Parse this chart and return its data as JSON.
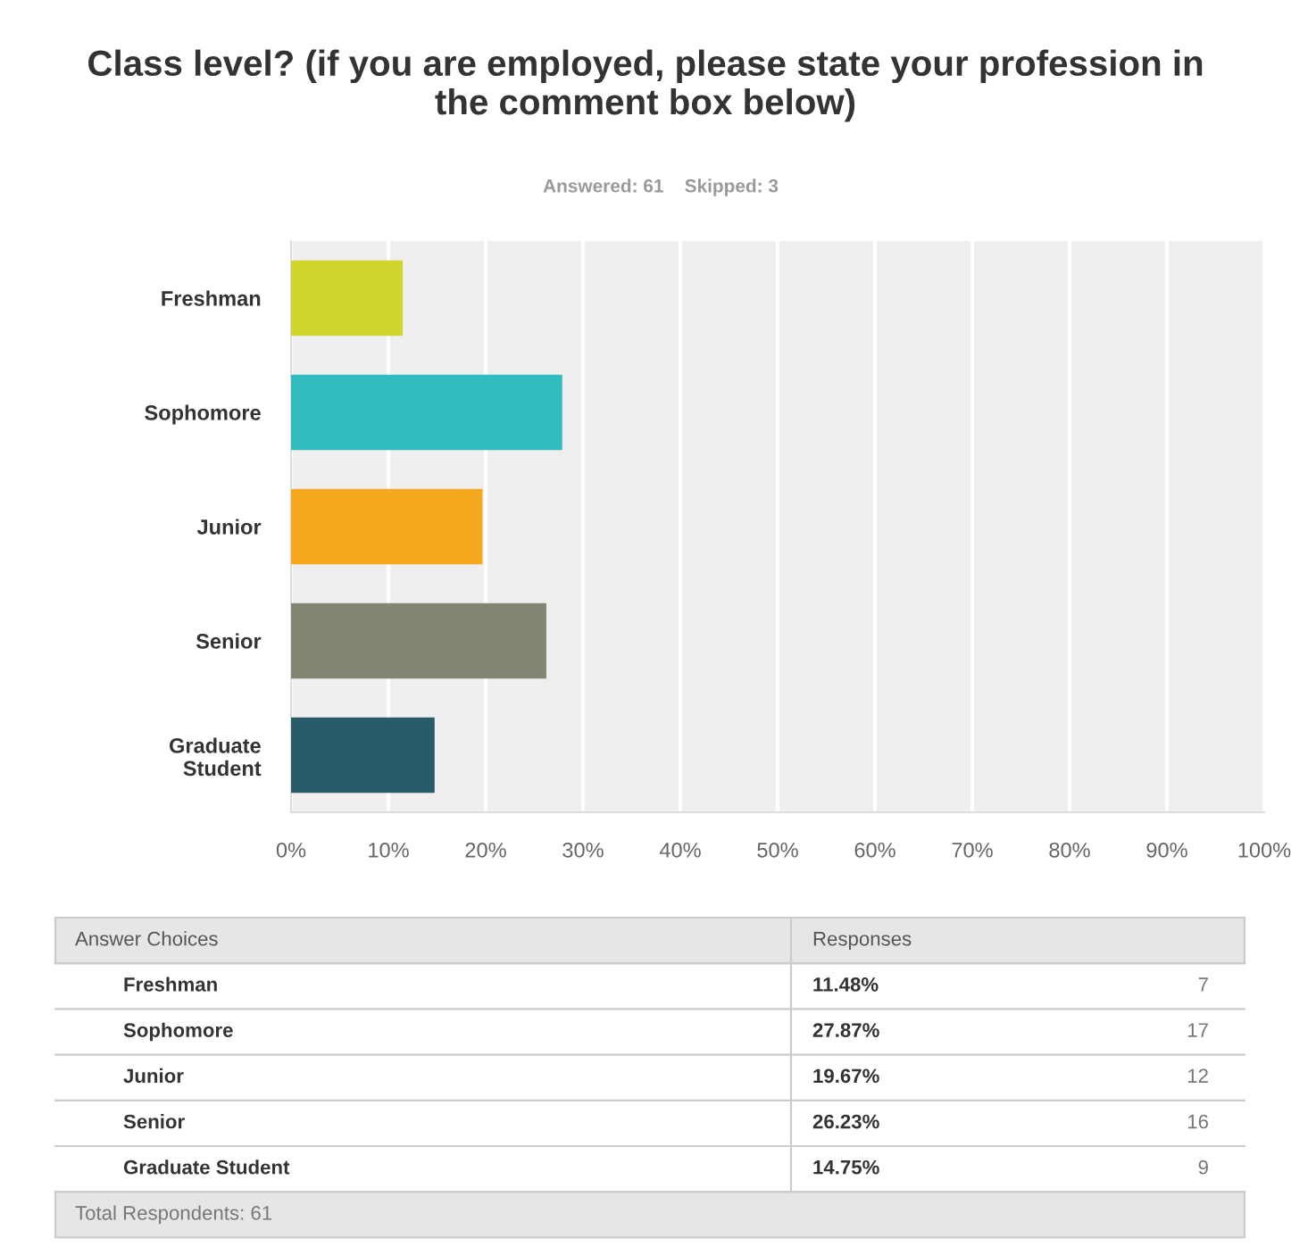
{
  "chart_data": {
    "type": "bar",
    "orientation": "horizontal",
    "title": "Class level? (if you are employed, please state your profession in the comment box below)",
    "subtitle": "Answered: 61    Skipped: 3",
    "categories": [
      "Freshman",
      "Sophomore",
      "Junior",
      "Senior",
      "Graduate Student"
    ],
    "values": [
      11.48,
      27.87,
      19.67,
      26.23,
      14.75
    ],
    "colors": [
      "#cfd52a",
      "#31bcbd",
      "#f5a81e",
      "#858574",
      "#2a5b68"
    ],
    "xlim": [
      0,
      100
    ],
    "xticks": [
      {
        "value": 0,
        "label": "0%"
      },
      {
        "value": 10,
        "label": "10%"
      },
      {
        "value": 20,
        "label": "20%"
      },
      {
        "value": 30,
        "label": "30%"
      },
      {
        "value": 40,
        "label": "40%"
      },
      {
        "value": 50,
        "label": "50%"
      },
      {
        "value": 60,
        "label": "60%"
      },
      {
        "value": 70,
        "label": "70%"
      },
      {
        "value": 80,
        "label": "80%"
      },
      {
        "value": 90,
        "label": "90%"
      },
      {
        "value": 100,
        "label": "100%"
      }
    ],
    "grid": "x",
    "annotations": [
      "Answer Choices",
      "Responses",
      "11.48%",
      "27.87%",
      "19.67%",
      "26.23%",
      "14.75%",
      "7",
      "17",
      "12",
      "16",
      "9",
      "Total Respondents: 61"
    ]
  }
}
